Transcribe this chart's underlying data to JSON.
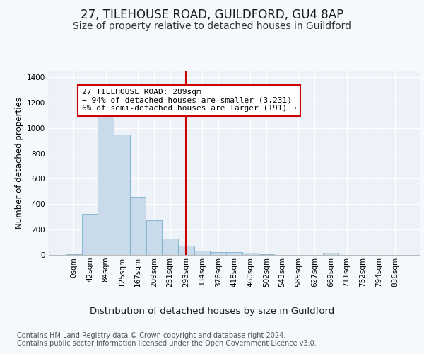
{
  "title1": "27, TILEHOUSE ROAD, GUILDFORD, GU4 8AP",
  "title2": "Size of property relative to detached houses in Guildford",
  "xlabel": "Distribution of detached houses by size in Guildford",
  "ylabel": "Number of detached properties",
  "footer1": "Contains HM Land Registry data © Crown copyright and database right 2024.",
  "footer2": "Contains public sector information licensed under the Open Government Licence v3.0.",
  "annotation_title": "27 TILEHOUSE ROAD: 289sqm",
  "annotation_line1": "← 94% of detached houses are smaller (3,231)",
  "annotation_line2": "6% of semi-detached houses are larger (191) →",
  "bar_color": "#c9daea",
  "bar_edge_color": "#7aaecb",
  "vline_color": "#cc0000",
  "vline_x_index": 7,
  "bin_labels": [
    "0sqm",
    "42sqm",
    "84sqm",
    "125sqm",
    "167sqm",
    "209sqm",
    "251sqm",
    "293sqm",
    "334sqm",
    "376sqm",
    "418sqm",
    "460sqm",
    "502sqm",
    "543sqm",
    "585sqm",
    "627sqm",
    "669sqm",
    "711sqm",
    "752sqm",
    "794sqm",
    "836sqm"
  ],
  "bar_heights": [
    5,
    325,
    1120,
    950,
    460,
    275,
    130,
    70,
    35,
    20,
    20,
    18,
    5,
    0,
    0,
    0,
    15,
    0,
    0,
    0,
    0
  ],
  "ylim": [
    0,
    1450
  ],
  "yticks": [
    0,
    200,
    400,
    600,
    800,
    1000,
    1200,
    1400
  ],
  "background_color": "#f5f8fc",
  "plot_bg_color": "#edf2f8",
  "grid_color": "#ffffff",
  "title1_fontsize": 12,
  "title2_fontsize": 10,
  "xlabel_fontsize": 9.5,
  "ylabel_fontsize": 8.5,
  "annotation_fontsize": 8,
  "tick_fontsize": 7.5,
  "footer_fontsize": 7
}
